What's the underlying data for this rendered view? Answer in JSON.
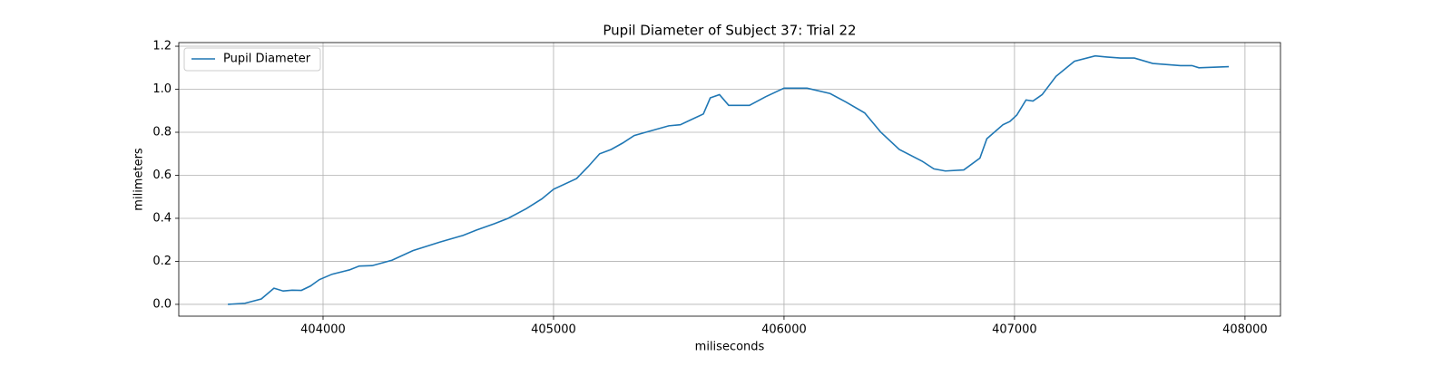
{
  "chart_data": {
    "type": "line",
    "title": "Pupil Diameter of Subject 37: Trial 22",
    "xlabel": "miliseconds",
    "ylabel": "milimeters",
    "x": [
      403587,
      403661,
      403732,
      403787,
      403827,
      403866,
      403906,
      403945,
      403984,
      404039,
      404114,
      404157,
      404213,
      404299,
      404390,
      404508,
      404606,
      404665,
      404744,
      404803,
      404882,
      404949,
      405000,
      405100,
      405150,
      405200,
      405250,
      405300,
      405350,
      405400,
      405500,
      405550,
      405600,
      405650,
      405680,
      405720,
      405760,
      405850,
      405920,
      406000,
      406100,
      406200,
      406270,
      406350,
      406420,
      406500,
      406600,
      406650,
      406700,
      406780,
      406850,
      406880,
      406950,
      406980,
      407010,
      407050,
      407080,
      407120,
      407180,
      407260,
      407350,
      407400,
      407460,
      407520,
      407600,
      407720,
      407770,
      407800,
      407930
    ],
    "series": [
      {
        "name": "Pupil Diameter",
        "color": "#1f77b4",
        "values": [
          0.0,
          0.005,
          0.025,
          0.075,
          0.062,
          0.066,
          0.065,
          0.085,
          0.115,
          0.14,
          0.16,
          0.178,
          0.18,
          0.205,
          0.25,
          0.29,
          0.32,
          0.345,
          0.375,
          0.4,
          0.445,
          0.49,
          0.535,
          0.585,
          0.64,
          0.7,
          0.72,
          0.75,
          0.785,
          0.8,
          0.83,
          0.835,
          0.86,
          0.885,
          0.96,
          0.975,
          0.925,
          0.925,
          0.965,
          1.005,
          1.005,
          0.98,
          0.94,
          0.89,
          0.8,
          0.72,
          0.665,
          0.63,
          0.62,
          0.625,
          0.68,
          0.77,
          0.835,
          0.85,
          0.88,
          0.95,
          0.945,
          0.975,
          1.06,
          1.13,
          1.155,
          1.15,
          1.145,
          1.145,
          1.12,
          1.11,
          1.11,
          1.1,
          1.105
        ]
      }
    ],
    "xlim": [
      403374,
      408154
    ],
    "ylim": [
      -0.055,
      1.217
    ],
    "xticks": [
      404000,
      405000,
      406000,
      407000,
      408000
    ],
    "yticks": [
      {
        "value": 0,
        "label": "0.0"
      },
      0.2,
      0.4,
      0.6,
      0.8,
      {
        "value": 1,
        "label": "1.0"
      },
      1.2
    ],
    "grid": true,
    "legend": "upper-left"
  }
}
